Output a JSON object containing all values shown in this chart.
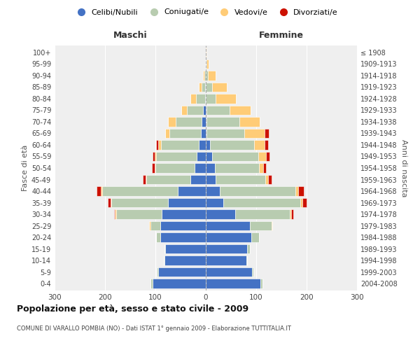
{
  "age_groups": [
    "0-4",
    "5-9",
    "10-14",
    "15-19",
    "20-24",
    "25-29",
    "30-34",
    "35-39",
    "40-44",
    "45-49",
    "50-54",
    "55-59",
    "60-64",
    "65-69",
    "70-74",
    "75-79",
    "80-84",
    "85-89",
    "90-94",
    "95-99",
    "100+"
  ],
  "birth_years": [
    "2004-2008",
    "1999-2003",
    "1994-1998",
    "1989-1993",
    "1984-1988",
    "1979-1983",
    "1974-1978",
    "1969-1973",
    "1964-1968",
    "1959-1963",
    "1954-1958",
    "1949-1953",
    "1944-1948",
    "1939-1943",
    "1934-1938",
    "1929-1933",
    "1924-1928",
    "1919-1923",
    "1914-1918",
    "1909-1913",
    "≤ 1908"
  ],
  "colors": {
    "celibi": "#4472C4",
    "coniugati": "#B8CCB0",
    "vedovi": "#FFCC77",
    "divorziati": "#CC1100"
  },
  "maschi": {
    "celibi": [
      105,
      95,
      82,
      80,
      90,
      90,
      88,
      75,
      55,
      30,
      22,
      18,
      14,
      10,
      8,
      5,
      2,
      1,
      0,
      0,
      0
    ],
    "coniugati": [
      5,
      2,
      1,
      2,
      8,
      20,
      90,
      112,
      150,
      88,
      78,
      80,
      75,
      62,
      52,
      32,
      18,
      8,
      3,
      1,
      0
    ],
    "vedovi": [
      0,
      0,
      0,
      0,
      1,
      2,
      2,
      2,
      3,
      2,
      2,
      3,
      5,
      8,
      15,
      12,
      10,
      5,
      2,
      1,
      0
    ],
    "divorziati": [
      0,
      0,
      0,
      0,
      0,
      0,
      2,
      5,
      8,
      5,
      5,
      4,
      5,
      0,
      0,
      0,
      0,
      0,
      0,
      0,
      0
    ]
  },
  "femmine": {
    "celibi": [
      108,
      92,
      80,
      82,
      90,
      88,
      58,
      35,
      28,
      20,
      18,
      12,
      8,
      2,
      2,
      2,
      0,
      0,
      0,
      0,
      0
    ],
    "coniugati": [
      5,
      2,
      2,
      5,
      15,
      42,
      108,
      152,
      150,
      98,
      88,
      92,
      88,
      75,
      65,
      45,
      20,
      12,
      4,
      1,
      0
    ],
    "vedovi": [
      0,
      0,
      0,
      0,
      0,
      2,
      3,
      5,
      5,
      5,
      8,
      15,
      20,
      40,
      40,
      42,
      40,
      30,
      15,
      5,
      2
    ],
    "divorziati": [
      0,
      0,
      0,
      0,
      0,
      0,
      5,
      8,
      12,
      8,
      5,
      8,
      8,
      8,
      0,
      0,
      0,
      0,
      0,
      0,
      0
    ]
  },
  "title": "Popolazione per età, sesso e stato civile - 2009",
  "subtitle": "COMUNE DI VARALLO POMBIA (NO) - Dati ISTAT 1° gennaio 2009 - Elaborazione TUTTITALIA.IT",
  "xlabel_left": "Maschi",
  "xlabel_right": "Femmine",
  "ylabel_left": "Fasce di età",
  "ylabel_right": "Anni di nascita",
  "xlim": 300,
  "legend_labels": [
    "Celibi/Nubili",
    "Coniugati/e",
    "Vedovi/e",
    "Divorziati/e"
  ],
  "bg_color": "#FFFFFF",
  "plot_bg": "#EFEFEF",
  "grid_color": "#FFFFFF"
}
